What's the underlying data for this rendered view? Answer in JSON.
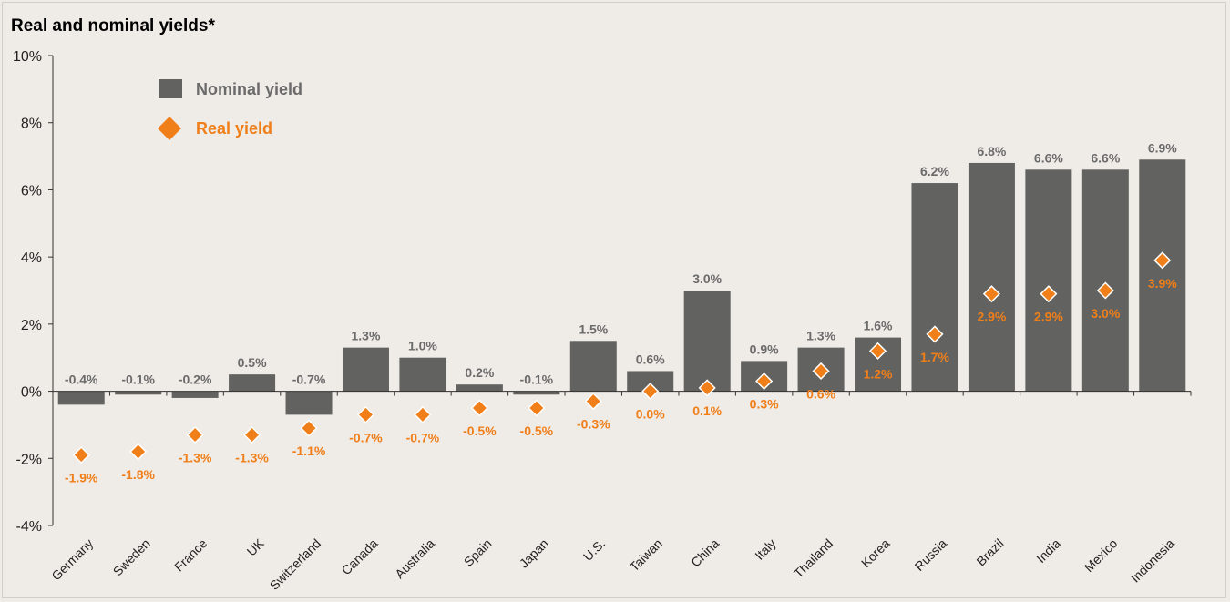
{
  "chart_data": {
    "type": "bar",
    "title": "Real and nominal yields*",
    "xlabel": "",
    "ylabel": "",
    "ylim": [
      -4,
      10
    ],
    "y_ticks": [
      10,
      8,
      6,
      4,
      2,
      0,
      -2,
      -4
    ],
    "y_tick_suffix": "%",
    "grid": false,
    "legend_position": "top-left",
    "categories": [
      "Germany",
      "Sweden",
      "France",
      "UK",
      "Switzerland",
      "Canada",
      "Australia",
      "Spain",
      "Japan",
      "U.S.",
      "Taiwan",
      "China",
      "Italy",
      "Thailand",
      "Korea",
      "Russia",
      "Brazil",
      "India",
      "Mexico",
      "Indonesia"
    ],
    "series": [
      {
        "name": "Nominal yield",
        "kind": "bar",
        "color": "#626260",
        "values": [
          -0.4,
          -0.1,
          -0.2,
          0.5,
          -0.7,
          1.3,
          1.0,
          0.2,
          -0.1,
          1.5,
          0.6,
          3.0,
          0.9,
          1.3,
          1.6,
          6.2,
          6.8,
          6.6,
          6.6,
          6.9
        ],
        "labels": [
          "-0.4%",
          "-0.1%",
          "-0.2%",
          "0.5%",
          "-0.7%",
          "1.3%",
          "1.0%",
          "0.2%",
          "-0.1%",
          "1.5%",
          "0.6%",
          "3.0%",
          "0.9%",
          "1.3%",
          "1.6%",
          "6.2%",
          "6.8%",
          "6.6%",
          "6.6%",
          "6.9%"
        ]
      },
      {
        "name": "Real yield",
        "kind": "diamond",
        "color": "#f07f1a",
        "values": [
          -1.9,
          -1.8,
          -1.3,
          -1.3,
          -1.1,
          -0.7,
          -0.7,
          -0.5,
          -0.5,
          -0.3,
          0.0,
          0.1,
          0.3,
          0.6,
          1.2,
          1.7,
          2.9,
          2.9,
          3.0,
          3.9
        ],
        "labels": [
          "-1.9%",
          "-1.8%",
          "-1.3%",
          "-1.3%",
          "-1.1%",
          "-0.7%",
          "-0.7%",
          "-0.5%",
          "-0.5%",
          "-0.3%",
          "0.0%",
          "0.1%",
          "0.3%",
          "0.6%",
          "1.2%",
          "1.7%",
          "2.9%",
          "2.9%",
          "3.0%",
          "3.9%"
        ]
      }
    ]
  }
}
